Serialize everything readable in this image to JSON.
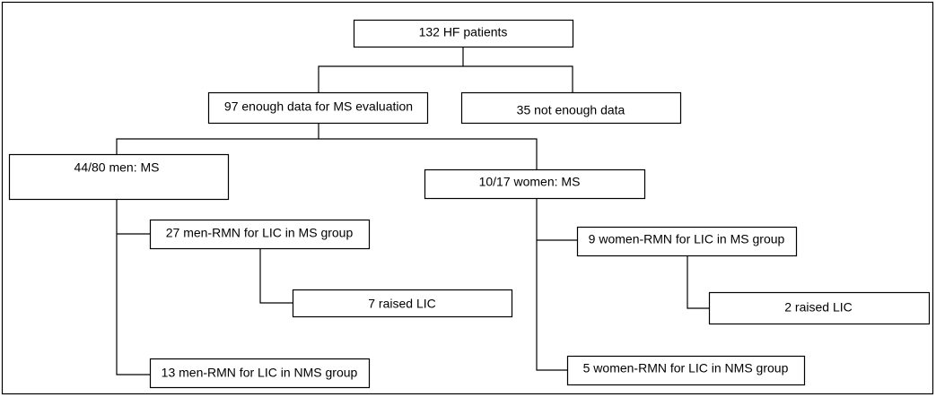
{
  "nodes": [
    {
      "label": "132 HF patients"
    },
    {
      "label": "97 enough data for MS evaluation"
    },
    {
      "label": "35 not enough data"
    },
    {
      "label": "44/80 men: MS"
    },
    {
      "label": "10/17 women: MS"
    },
    {
      "label": "27 men-RMN for LIC in MS group"
    },
    {
      "label": "7 raised LIC"
    },
    {
      "label": "13 men-RMN for LIC in NMS group"
    },
    {
      "label": "9 women-RMN for LIC in MS group"
    },
    {
      "label": "2 raised LIC"
    },
    {
      "label": "5 women-RMN for LIC in NMS group"
    }
  ]
}
